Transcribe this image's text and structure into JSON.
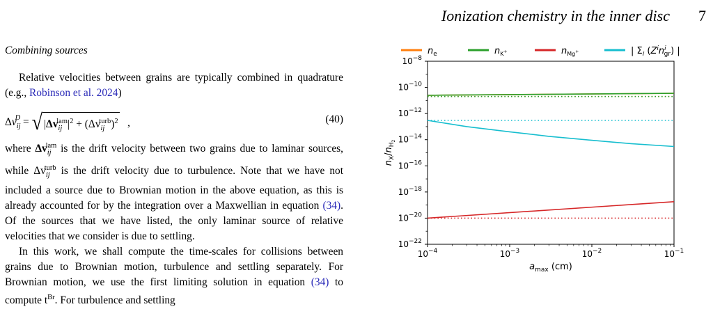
{
  "header": {
    "running_title": "Ionization chemistry in the inner disc",
    "page_number": "7"
  },
  "section": {
    "title": "Combining sources"
  },
  "paragraphs": {
    "p1_a": "Relative velocities between grains are typically combined in quadrature (e.g., ",
    "p1_cite": "Robinson et al. 2024",
    "p1_b": ")",
    "equation_number": "(40)",
    "p2_a": "where ",
    "p2_b": " is the drift velocity between two grains due to laminar sources, while ",
    "p2_c": " is the drift velocity due to turbulence. Note that we have not included a source due to Brownian motion in the above equation, as this is already accounted for by the integration over a Maxwellian in equation ",
    "p2_cite": "(34)",
    "p2_d": ". Of the sources that we have listed, the only laminar source of relative velocities that we consider is due to settling.",
    "p3_a": "In this work, we shall compute the time-scales for collisions between grains due to Brownian motion, turbulence and settling separately. For Brownian motion, we use the first limiting solution in equation ",
    "p3_cite": "(34)",
    "p3_b": " to compute t",
    "p3_sup": "Br",
    "p3_c": ". For turbulence and settling"
  },
  "chart_data": {
    "type": "line",
    "x_scale": "log",
    "y_scale": "log",
    "xlim": [
      0.0001,
      0.1
    ],
    "ylim": [
      1e-22,
      1e-08
    ],
    "xlabel": "a_max (cm)",
    "ylabel": "n_X/n_H2",
    "x_ticks": [
      {
        "value": 0.0001,
        "label": "10",
        "exp": "−4"
      },
      {
        "value": 0.001,
        "label": "10",
        "exp": "−3"
      },
      {
        "value": 0.01,
        "label": "10",
        "exp": "−2"
      },
      {
        "value": 0.1,
        "label": "10",
        "exp": "−1"
      }
    ],
    "y_ticks": [
      {
        "value": 1e-08,
        "label": "10",
        "exp": "−8"
      },
      {
        "value": 1e-10,
        "label": "10",
        "exp": "−10"
      },
      {
        "value": 1e-12,
        "label": "10",
        "exp": "−12"
      },
      {
        "value": 1e-14,
        "label": "10",
        "exp": "−14"
      },
      {
        "value": 1e-16,
        "label": "10",
        "exp": "−16"
      },
      {
        "value": 1e-18,
        "label": "10",
        "exp": "−18"
      },
      {
        "value": 1e-20,
        "label": "10",
        "exp": "−20"
      },
      {
        "value": 1e-22,
        "label": "10",
        "exp": "−22"
      }
    ],
    "legend": {
      "placement": "top",
      "entries": [
        {
          "id": "ne",
          "label": "n_e",
          "color": "#ff7f0e"
        },
        {
          "id": "nk",
          "label": "n_K+",
          "color": "#2ca02c"
        },
        {
          "id": "nmg",
          "label": "n_Mg+",
          "color": "#d62728"
        },
        {
          "id": "sum",
          "label": "| Σ_i (Z^i n^i_gr) |",
          "color": "#17becf"
        }
      ]
    },
    "series": [
      {
        "id": "ne",
        "style": "solid",
        "color": "#ff7f0e",
        "x": [
          0.0001,
          0.1
        ],
        "y": [
          2.5e-11,
          3.5e-11
        ]
      },
      {
        "id": "nk",
        "style": "solid",
        "color": "#2ca02c",
        "x": [
          0.0001,
          0.1
        ],
        "y": [
          2.5e-11,
          3.5e-11
        ]
      },
      {
        "id": "ne_dot",
        "style": "dotted",
        "color": "#ff7f0e",
        "x": [
          0.0001,
          0.1
        ],
        "y": [
          2e-11,
          2e-11
        ]
      },
      {
        "id": "nk_dot",
        "style": "dotted",
        "color": "#2ca02c",
        "x": [
          0.0001,
          0.1
        ],
        "y": [
          2e-11,
          2e-11
        ]
      },
      {
        "id": "sum",
        "style": "solid",
        "color": "#17becf",
        "x": [
          0.0001,
          0.0003,
          0.001,
          0.003,
          0.01,
          0.03,
          0.1
        ],
        "y": [
          3e-13,
          1e-13,
          4e-14,
          1.8e-14,
          9e-15,
          5e-15,
          3e-15
        ]
      },
      {
        "id": "sum_dot",
        "style": "dotted",
        "color": "#17becf",
        "x": [
          0.0001,
          0.1
        ],
        "y": [
          3e-13,
          3e-13
        ]
      },
      {
        "id": "nmg",
        "style": "solid",
        "color": "#d62728",
        "x": [
          0.0001,
          0.1
        ],
        "y": [
          1e-20,
          1.8e-19
        ]
      },
      {
        "id": "nmg_dot",
        "style": "dotted",
        "color": "#d62728",
        "x": [
          0.0001,
          0.1
        ],
        "y": [
          1e-20,
          1e-20
        ]
      }
    ]
  }
}
